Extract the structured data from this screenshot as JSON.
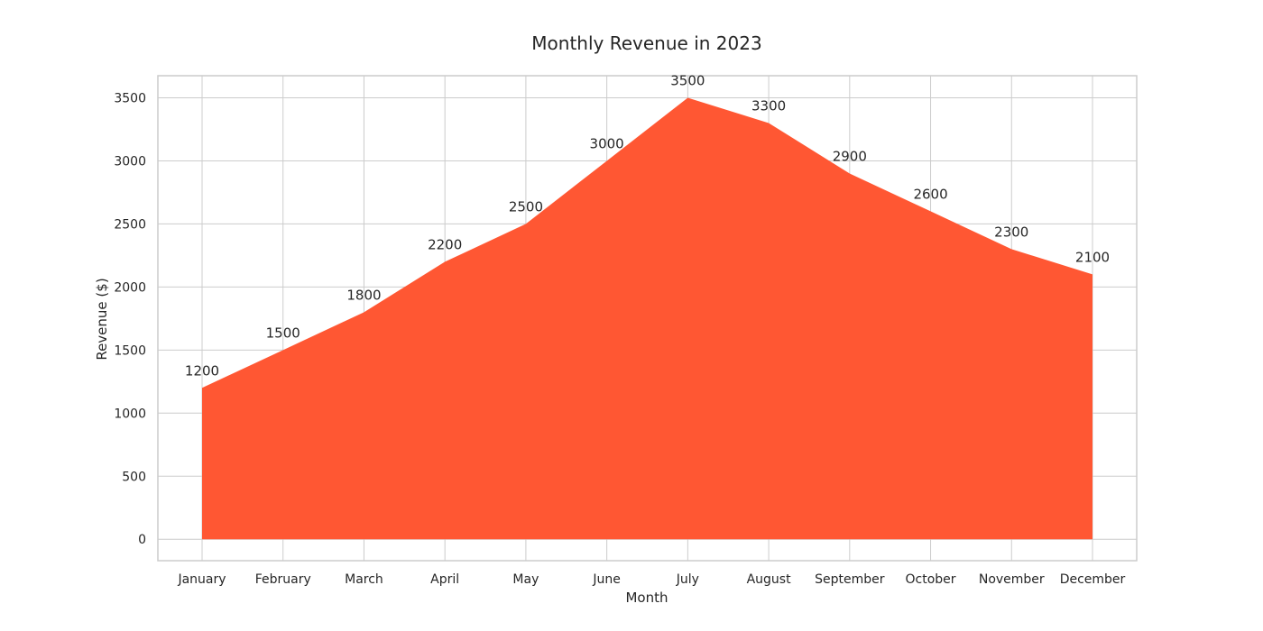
{
  "chart_data": {
    "type": "area",
    "title": "Monthly Revenue in 2023",
    "xlabel": "Month",
    "ylabel": "Revenue ($)",
    "categories": [
      "January",
      "February",
      "March",
      "April",
      "May",
      "June",
      "July",
      "August",
      "September",
      "October",
      "November",
      "December"
    ],
    "series": [
      {
        "values": [
          1200,
          1500,
          1800,
          2200,
          2500,
          3000,
          3500,
          3300,
          2900,
          2600,
          2300,
          2100
        ],
        "color": "#ff5733"
      }
    ],
    "ylim": [
      -170,
      3675
    ],
    "yticks": [
      0,
      500,
      1000,
      1500,
      2000,
      2500,
      3000,
      3500
    ],
    "grid": true,
    "legend": "none",
    "colors": {
      "grid": "#cccccc",
      "text": "#262626",
      "fill": "#ff5733"
    }
  }
}
